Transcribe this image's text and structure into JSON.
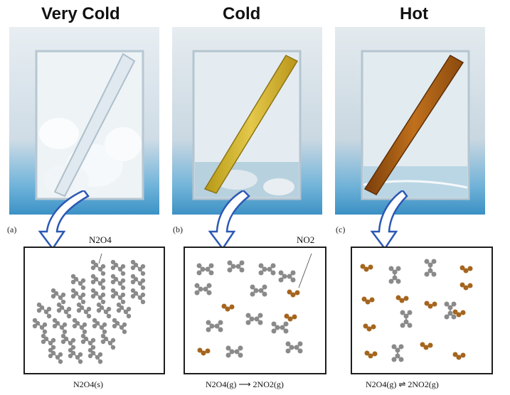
{
  "titles": [
    "Very Cold",
    "Cold",
    "Hot"
  ],
  "panel_labels": [
    "(a)",
    "(b)",
    "(c)"
  ],
  "molecule_labels": {
    "a": "N2O4",
    "b": "NO2"
  },
  "captions": {
    "a": "N2O4(s)",
    "b": "N2O4(g) ⟶ 2NO2(g)",
    "c": "N2O4(g) ⇌ 2NO2(g)"
  },
  "colors": {
    "box_border": "#1e1e1e",
    "arrow": "#2b58b5",
    "molecule_gray": "#8a8a8a",
    "molecule_brown": "#a5651e",
    "background_blue": "#7fb6d8"
  }
}
